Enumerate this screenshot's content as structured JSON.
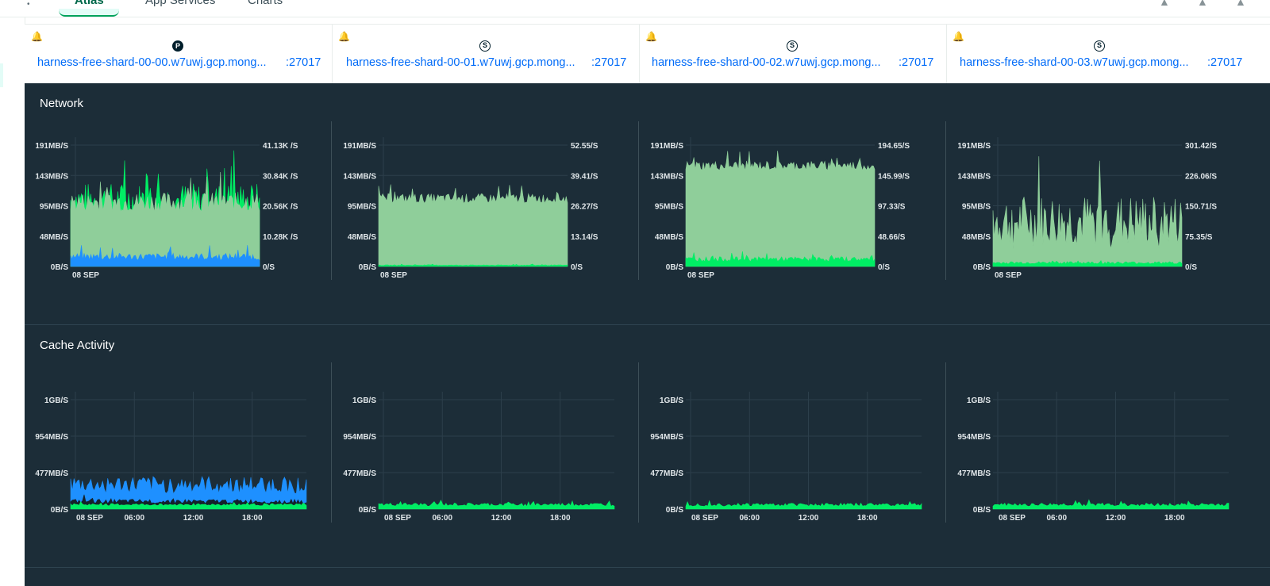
{
  "topnav": {
    "tabs": [
      {
        "label": "Atlas",
        "active": true
      },
      {
        "label": "App Services",
        "active": false
      },
      {
        "label": "Charts",
        "active": false
      }
    ]
  },
  "hosts": [
    {
      "role": "P",
      "name": "harness-free-shard-00-00.w7uwj.gcp.mong...",
      "port": ":27017"
    },
    {
      "role": "S",
      "name": "harness-free-shard-00-01.w7uwj.gcp.mong...",
      "port": ":27017"
    },
    {
      "role": "S",
      "name": "harness-free-shard-00-02.w7uwj.gcp.mong...",
      "port": ":27017"
    },
    {
      "role": "S",
      "name": "harness-free-shard-00-03.w7uwj.gcp.mong...",
      "port": ":27017"
    }
  ],
  "sections": {
    "network": "Network",
    "cache": "Cache Activity"
  },
  "colors": {
    "background": "#1c2d38",
    "green": "#00ed64",
    "light_green": "#8fce9a",
    "blue": "#1e90ff",
    "link": "#016bf8"
  },
  "chart_data": [
    {
      "section": "Network",
      "host": 0,
      "type": "area",
      "y_left_ticks": [
        "191MB/S",
        "143MB/S",
        "95MB/S",
        "48MB/S",
        "0B/S"
      ],
      "y_right_ticks": [
        "41.13K /S",
        "30.84K /S",
        "20.56K /S",
        "10.28K /S",
        "0/S"
      ],
      "x_ticks": [
        "08 SEP"
      ],
      "series": [
        {
          "color": "#00ed64",
          "level": 0.55,
          "noise": 0.14
        },
        {
          "color": "#8fce9a",
          "level": 0.53,
          "noise": 0.08
        },
        {
          "color": "#1e90ff",
          "level": 0.08,
          "noise": 0.03
        }
      ]
    },
    {
      "section": "Network",
      "host": 1,
      "type": "area",
      "y_left_ticks": [
        "191MB/S",
        "143MB/S",
        "95MB/S",
        "48MB/S",
        "0B/S"
      ],
      "y_right_ticks": [
        "52.55/S",
        "39.41/S",
        "26.27/S",
        "13.14/S",
        "0/S"
      ],
      "x_ticks": [
        "08 SEP"
      ],
      "series": [
        {
          "color": "#8fce9a",
          "level": 0.56,
          "noise": 0.04
        },
        {
          "color": "#00ed64",
          "level": 0.01,
          "noise": 0.003
        }
      ]
    },
    {
      "section": "Network",
      "host": 2,
      "type": "area",
      "y_left_ticks": [
        "191MB/S",
        "143MB/S",
        "95MB/S",
        "48MB/S",
        "0B/S"
      ],
      "y_right_ticks": [
        "194.65/S",
        "145.99/S",
        "97.33/S",
        "48.66/S",
        "0/S"
      ],
      "x_ticks": [
        "08 SEP"
      ],
      "series": [
        {
          "color": "#8fce9a",
          "level": 0.83,
          "noise": 0.04
        },
        {
          "color": "#00ed64",
          "level": 0.06,
          "noise": 0.02
        }
      ]
    },
    {
      "section": "Network",
      "host": 3,
      "type": "area",
      "y_left_ticks": [
        "191MB/S",
        "143MB/S",
        "95MB/S",
        "48MB/S",
        "0B/S"
      ],
      "y_right_ticks": [
        "301.42/S",
        "226.06/S",
        "150.71/S",
        "75.35/S",
        "0/S"
      ],
      "x_ticks": [
        "08 SEP"
      ],
      "series": [
        {
          "color": "#8fce9a",
          "level": 0.36,
          "noise": 0.22
        },
        {
          "color": "#00ed64",
          "level": 0.03,
          "noise": 0.01
        }
      ]
    },
    {
      "section": "Cache Activity",
      "host": 0,
      "type": "area",
      "y_left_ticks": [
        "1GB/S",
        "954MB/S",
        "477MB/S",
        "0B/S"
      ],
      "x_ticks": [
        "08 SEP",
        "06:00",
        "12:00",
        "18:00"
      ],
      "series": [
        {
          "color": "#1e90ff",
          "level": 0.22,
          "noise": 0.08
        },
        {
          "color": "#14222b",
          "level": 0.07,
          "noise": 0.02
        },
        {
          "color": "#00ed64",
          "level": 0.04,
          "noise": 0.01
        }
      ]
    },
    {
      "section": "Cache Activity",
      "host": 1,
      "type": "area",
      "y_left_ticks": [
        "1GB/S",
        "954MB/S",
        "477MB/S",
        "0B/S"
      ],
      "x_ticks": [
        "08 SEP",
        "06:00",
        "12:00",
        "18:00"
      ],
      "series": [
        {
          "color": "#00ed64",
          "level": 0.04,
          "noise": 0.015
        }
      ]
    },
    {
      "section": "Cache Activity",
      "host": 2,
      "type": "area",
      "y_left_ticks": [
        "1GB/S",
        "954MB/S",
        "477MB/S",
        "0B/S"
      ],
      "x_ticks": [
        "08 SEP",
        "06:00",
        "12:00",
        "18:00"
      ],
      "series": [
        {
          "color": "#00ed64",
          "level": 0.04,
          "noise": 0.015
        }
      ]
    },
    {
      "section": "Cache Activity",
      "host": 3,
      "type": "area",
      "y_left_ticks": [
        "1GB/S",
        "954MB/S",
        "477MB/S",
        "0B/S"
      ],
      "x_ticks": [
        "08 SEP",
        "06:00",
        "12:00",
        "18:00"
      ],
      "series": [
        {
          "color": "#00ed64",
          "level": 0.04,
          "noise": 0.015
        }
      ]
    }
  ]
}
